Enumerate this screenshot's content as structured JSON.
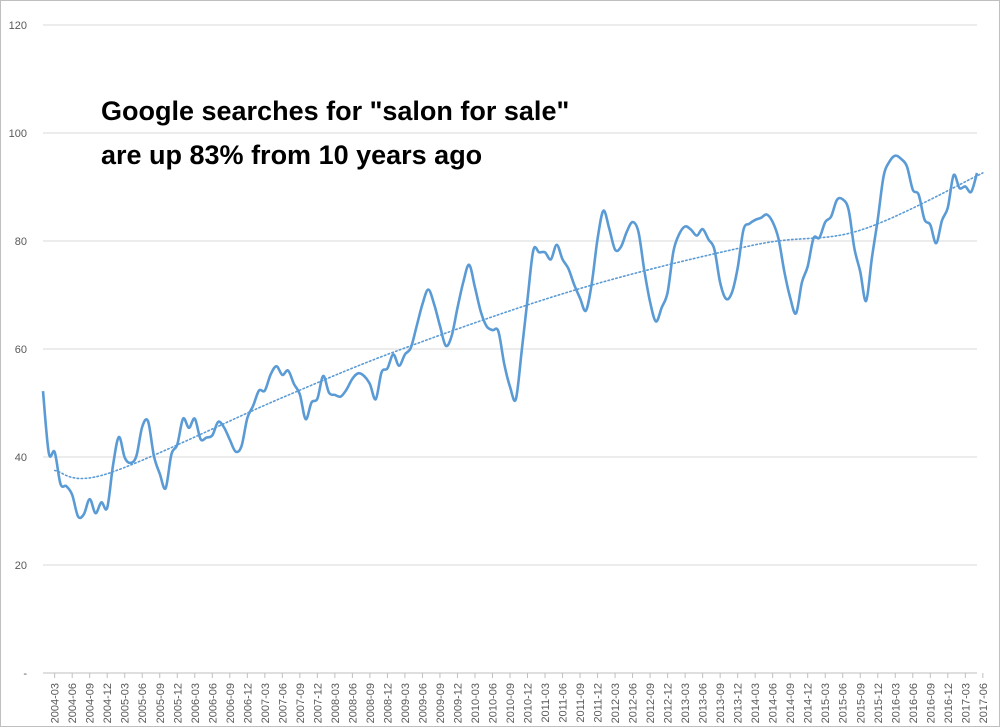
{
  "chart_data": {
    "type": "line",
    "title_lines": [
      "Google searches for \"salon for sale\"",
      "are up 83% from 10 years ago"
    ],
    "xlabel": "",
    "ylabel": "",
    "ylim": [
      0,
      120
    ],
    "y_ticks": [
      "-",
      "20",
      "40",
      "60",
      "80",
      "100",
      "120"
    ],
    "grid": "horizontal",
    "legend": "none",
    "colors": {
      "series": "#5b9bd5",
      "trend": "#5b9bd5",
      "grid": "#d9d9d9",
      "axis": "#bfbfbf",
      "tick_text": "#595959"
    },
    "x_tick_labels": [
      "2004-03",
      "2004-06",
      "2004-09",
      "2004-12",
      "2005-03",
      "2005-06",
      "2005-09",
      "2005-12",
      "2006-03",
      "2006-06",
      "2006-09",
      "2006-12",
      "2007-03",
      "2007-06",
      "2007-09",
      "2007-12",
      "2008-03",
      "2008-06",
      "2008-09",
      "2008-12",
      "2009-03",
      "2009-06",
      "2009-09",
      "2009-12",
      "2010-03",
      "2010-06",
      "2010-09",
      "2010-12",
      "2011-03",
      "2011-06",
      "2011-09",
      "2011-12",
      "2012-03",
      "2012-06",
      "2012-09",
      "2012-12",
      "2013-03",
      "2013-06",
      "2013-09",
      "2013-12",
      "2014-03",
      "2014-06",
      "2014-09",
      "2014-12",
      "2015-03",
      "2015-06",
      "2015-09",
      "2015-12",
      "2016-03",
      "2016-06",
      "2016-09",
      "2016-12",
      "2017-03",
      "2017-06"
    ],
    "series": [
      {
        "start_month": "2004-01",
        "values": [
          52.2,
          40.7,
          40.9,
          35.0,
          34.6,
          33.0,
          29.0,
          29.4,
          32.2,
          29.6,
          31.6,
          30.6,
          38.5,
          43.7,
          39.9,
          38.9,
          40.2,
          45.6,
          46.6,
          40.2,
          36.9,
          34.2,
          40.5,
          42.3,
          47.1,
          45.4,
          47.1,
          43.3,
          43.6,
          44.0,
          46.5,
          45.5,
          43.2,
          41.0,
          42.0,
          47.2,
          49.5,
          52.3,
          52.3,
          55.3,
          56.8,
          55.2,
          56.0,
          53.5,
          51.6,
          47.0,
          50.1,
          50.8,
          55.0,
          51.9,
          51.5,
          51.2,
          52.5,
          54.5,
          55.5,
          55.0,
          53.5,
          50.7,
          55.7,
          56.4,
          59.0,
          56.9,
          59.0,
          60.2,
          64.2,
          68.3,
          71.0,
          68.3,
          64.3,
          60.6,
          62.4,
          67.6,
          72.4,
          75.6,
          71.4,
          66.9,
          64.2,
          63.5,
          63.3,
          57.3,
          53.0,
          50.7,
          59.6,
          69.2,
          78.3,
          77.9,
          77.9,
          76.6,
          79.3,
          76.6,
          74.9,
          71.9,
          69.4,
          67.1,
          72.1,
          80.4,
          85.6,
          82.3,
          78.4,
          78.9,
          81.7,
          83.5,
          81.7,
          74.6,
          68.7,
          65.1,
          67.7,
          70.5,
          78.1,
          81.3,
          82.7,
          82.1,
          81.0,
          82.2,
          80.3,
          78.5,
          72.3,
          69.3,
          70.4,
          75.0,
          82.1,
          83.2,
          83.9,
          84.3,
          84.9,
          83.5,
          80.4,
          74.3,
          69.5,
          66.6,
          72.3,
          75.3,
          80.5,
          80.6,
          83.5,
          84.5,
          87.6,
          87.7,
          85.8,
          78.6,
          74.3,
          68.9,
          76.9,
          84.0,
          92.0,
          94.7,
          95.8,
          95.2,
          93.8,
          89.5,
          88.6,
          84.0,
          83.0,
          79.6,
          83.8,
          86.2,
          92.2,
          89.8,
          90.1,
          89.1,
          92.6
        ]
      }
    ],
    "trend": {
      "type": "polynomial",
      "values_at": {
        "2004-03": 37.5,
        "2004-12": 36.9,
        "2007-06": 51.0,
        "2009-03": 60.2,
        "2011-09": 71.2,
        "2014-03": 79.3,
        "2015-09": 82.0,
        "2017-06": 92.6
      }
    }
  }
}
